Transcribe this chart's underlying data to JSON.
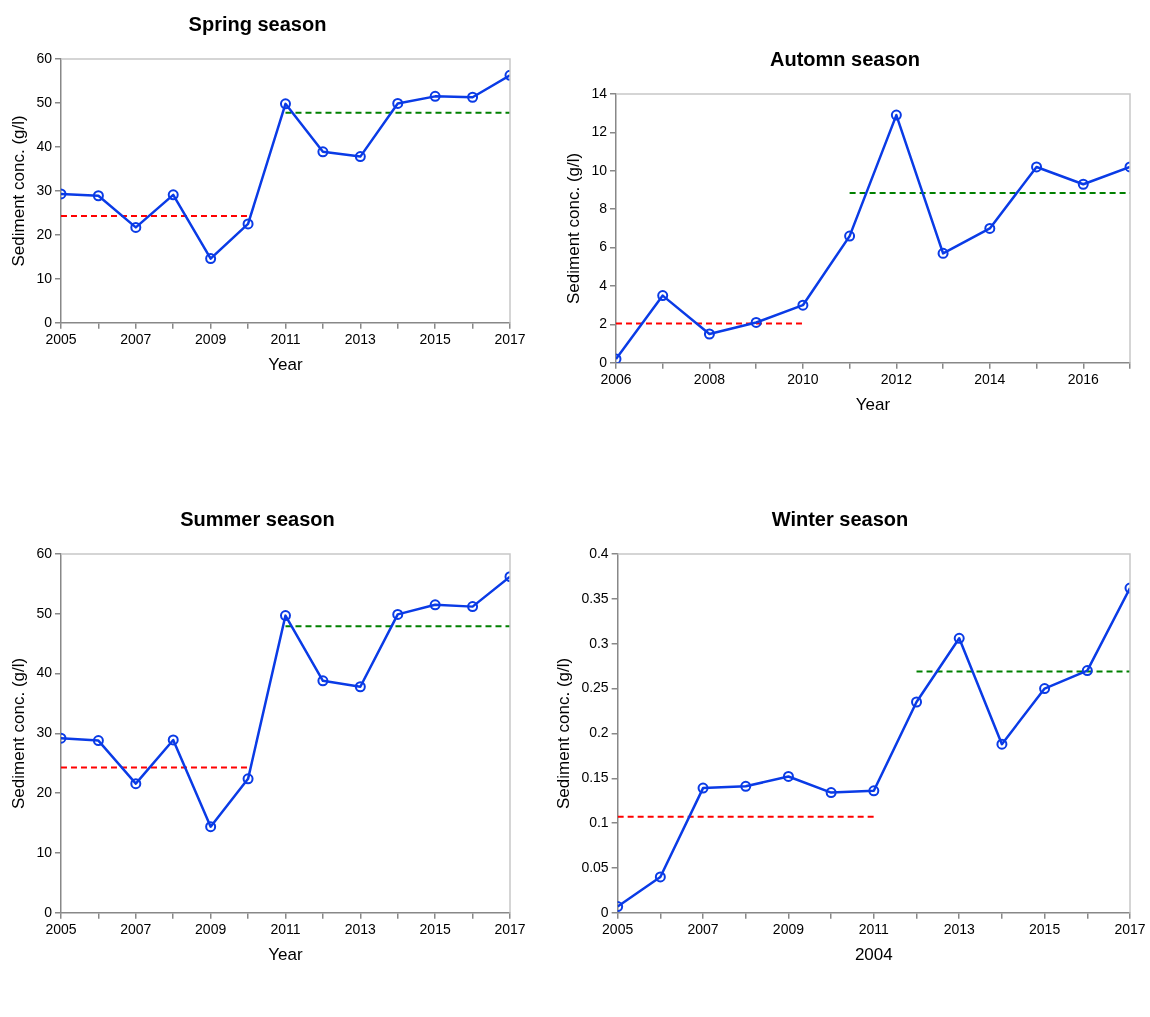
{
  "chart_data": [
    {
      "type": "line",
      "title": "Spring season",
      "xlabel": "Year",
      "ylabel": "Sediment conc. (g/l)",
      "marker": "circle",
      "grid": false,
      "legend": false,
      "xlim": [
        2005,
        2017
      ],
      "xticks": [
        2005,
        {
          "value": 2006,
          "label": null
        },
        2007,
        {
          "value": 2008,
          "label": null
        },
        2009,
        {
          "value": 2010,
          "label": null
        },
        2011,
        {
          "value": 2012,
          "label": null
        },
        2013,
        {
          "value": 2014,
          "label": null
        },
        2015,
        {
          "value": 2016,
          "label": null
        },
        2017
      ],
      "ylim": [
        0,
        60
      ],
      "yticks": [
        0,
        10,
        20,
        30,
        40,
        50,
        60
      ],
      "series": [
        {
          "color": "#0a3be6",
          "x": [
            2005,
            2006,
            2007,
            2008,
            2009,
            2010,
            2011,
            2012,
            2013,
            2014,
            2015,
            2016,
            2017
          ],
          "values": [
            29.3,
            28.9,
            21.7,
            29.1,
            14.6,
            22.5,
            49.8,
            38.9,
            37.8,
            49.9,
            51.5,
            51.3,
            56.3
          ]
        },
        {
          "color": "#ff0000",
          "marker": "none",
          "line_style": "dashed",
          "x": [
            2005,
            2010
          ],
          "values": [
            24.3,
            24.3
          ]
        },
        {
          "color": "#008000",
          "marker": "none",
          "line_style": "dashed",
          "x": [
            2011,
            2017
          ],
          "values": [
            47.8,
            47.8
          ]
        }
      ]
    },
    {
      "type": "line",
      "title": "Automn season",
      "xlabel": "Year",
      "ylabel": "Sediment conc. (g/l)",
      "marker": "circle",
      "grid": false,
      "legend": false,
      "xlim": [
        2006,
        2017
      ],
      "xticks": [
        2006,
        {
          "value": 2007,
          "label": null
        },
        2008,
        {
          "value": 2009,
          "label": null
        },
        2010,
        {
          "value": 2011,
          "label": null
        },
        2012,
        {
          "value": 2013,
          "label": null
        },
        2014,
        {
          "value": 2015,
          "label": null
        },
        2016,
        {
          "value": 2017,
          "label": null
        }
      ],
      "ylim": [
        0,
        14
      ],
      "yticks": [
        0,
        2,
        4,
        6,
        8,
        10,
        12,
        14
      ],
      "series": [
        {
          "color": "#0a3be6",
          "x": [
            2006,
            2007,
            2008,
            2009,
            2010,
            2011,
            2012,
            2013,
            2014,
            2015,
            2016,
            2017
          ],
          "values": [
            0.2,
            3.5,
            1.5,
            2.1,
            3.0,
            6.6,
            12.9,
            5.7,
            7.0,
            10.2,
            9.3,
            10.2
          ]
        },
        {
          "color": "#ff0000",
          "marker": "none",
          "line_style": "dashed",
          "x": [
            2006,
            2010
          ],
          "values": [
            2.05,
            2.05
          ]
        },
        {
          "color": "#008000",
          "marker": "none",
          "line_style": "dashed",
          "x": [
            2011,
            2017
          ],
          "values": [
            8.85,
            8.85
          ]
        }
      ]
    },
    {
      "type": "line",
      "title": "Summer season",
      "xlabel": "Year",
      "ylabel": "Sediment conc. (g/l)",
      "marker": "circle",
      "grid": false,
      "legend": false,
      "xlim": [
        2005,
        2017
      ],
      "xticks": [
        2005,
        {
          "value": 2006,
          "label": null
        },
        2007,
        {
          "value": 2008,
          "label": null
        },
        2009,
        {
          "value": 2010,
          "label": null
        },
        2011,
        {
          "value": 2012,
          "label": null
        },
        2013,
        {
          "value": 2014,
          "label": null
        },
        2015,
        {
          "value": 2016,
          "label": null
        },
        2017
      ],
      "ylim": [
        0,
        60
      ],
      "yticks": [
        0,
        10,
        20,
        30,
        40,
        50,
        60
      ],
      "series": [
        {
          "color": "#0a3be6",
          "x": [
            2005,
            2006,
            2007,
            2008,
            2009,
            2010,
            2011,
            2012,
            2013,
            2014,
            2015,
            2016,
            2017
          ],
          "values": [
            29.2,
            28.8,
            21.6,
            28.9,
            14.4,
            22.4,
            49.7,
            38.8,
            37.8,
            49.9,
            51.5,
            51.2,
            56.2
          ]
        },
        {
          "color": "#ff0000",
          "marker": "none",
          "line_style": "dashed",
          "x": [
            2005,
            2010
          ],
          "values": [
            24.3,
            24.3
          ]
        },
        {
          "color": "#008000",
          "marker": "none",
          "line_style": "dashed",
          "x": [
            2011,
            2017
          ],
          "values": [
            47.9,
            47.9
          ]
        }
      ]
    },
    {
      "type": "line",
      "title": "Winter season",
      "xlabel": "2004",
      "ylabel": "Sediment conc. (g/l)",
      "marker": "circle",
      "grid": false,
      "legend": false,
      "xlim": [
        2005,
        2017
      ],
      "xticks": [
        2005,
        {
          "value": 2006,
          "label": null
        },
        2007,
        {
          "value": 2008,
          "label": null
        },
        2009,
        {
          "value": 2010,
          "label": null
        },
        2011,
        {
          "value": 2012,
          "label": null
        },
        2013,
        {
          "value": 2014,
          "label": null
        },
        2015,
        {
          "value": 2016,
          "label": null
        },
        2017
      ],
      "ylim": [
        0,
        0.4
      ],
      "yticks": [
        0,
        0.05,
        0.1,
        0.15,
        0.2,
        0.25,
        0.3,
        0.35,
        0.4
      ],
      "series": [
        {
          "color": "#0a3be6",
          "x": [
            2005,
            2006,
            2007,
            2008,
            2009,
            2010,
            2011,
            2012,
            2013,
            2014,
            2015,
            2016,
            2017
          ],
          "values": [
            0.007,
            0.04,
            0.139,
            0.141,
            0.152,
            0.134,
            0.136,
            0.235,
            0.306,
            0.188,
            0.25,
            0.27,
            0.362
          ]
        },
        {
          "color": "#ff0000",
          "marker": "none",
          "line_style": "dashed",
          "x": [
            2005,
            2011
          ],
          "values": [
            0.107,
            0.107
          ]
        },
        {
          "color": "#008000",
          "marker": "none",
          "line_style": "dashed",
          "x": [
            2012,
            2017
          ],
          "values": [
            0.269,
            0.269
          ]
        }
      ]
    }
  ]
}
